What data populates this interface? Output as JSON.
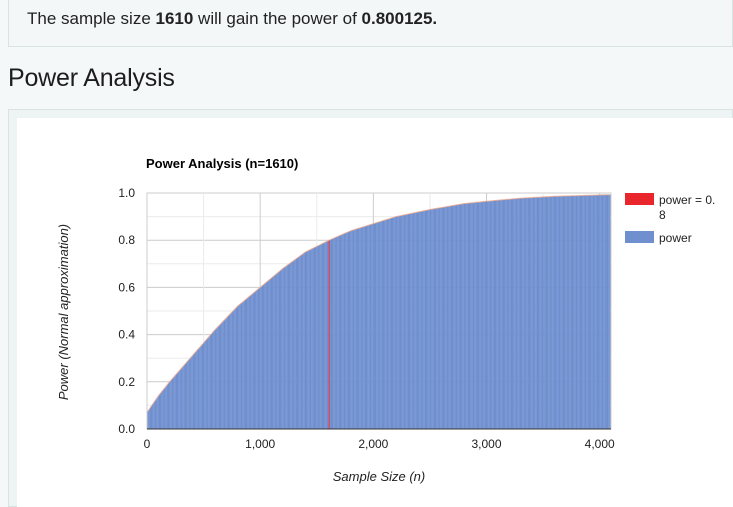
{
  "result": {
    "prefix": "The sample size ",
    "sample_size": "1610",
    "middle": " will gain the power of ",
    "power": "0.800125."
  },
  "section": {
    "title": "Power Analysis"
  },
  "chart_data": {
    "type": "bar",
    "title": "Power Analysis (n=1610)",
    "xlabel": "Sample Size (n)",
    "ylabel": "Power (Normal approximation)",
    "xlim": [
      0,
      4100
    ],
    "ylim": [
      0,
      1.0
    ],
    "x_ticks": [
      0,
      1000,
      2000,
      3000,
      4000
    ],
    "x_tick_labels": [
      "0",
      "1,000",
      "2,000",
      "3,000",
      "4,000"
    ],
    "y_ticks": [
      0,
      0.2,
      0.4,
      0.6,
      0.8,
      1.0
    ],
    "y_tick_labels": [
      "0.0",
      "0.2",
      "0.4",
      "0.6",
      "0.8",
      "1.0"
    ],
    "grid": true,
    "legend_position": "right",
    "series": [
      {
        "name": "power",
        "color": "#6f8fcf",
        "x_start": 10,
        "x_step": 10,
        "x_end": 4090,
        "curve_points": [
          {
            "x": 0,
            "y": 0.07
          },
          {
            "x": 100,
            "y": 0.14
          },
          {
            "x": 200,
            "y": 0.2
          },
          {
            "x": 400,
            "y": 0.31
          },
          {
            "x": 600,
            "y": 0.42
          },
          {
            "x": 800,
            "y": 0.52
          },
          {
            "x": 1000,
            "y": 0.6
          },
          {
            "x": 1200,
            "y": 0.68
          },
          {
            "x": 1400,
            "y": 0.75
          },
          {
            "x": 1610,
            "y": 0.8
          },
          {
            "x": 1800,
            "y": 0.84
          },
          {
            "x": 2000,
            "y": 0.87
          },
          {
            "x": 2200,
            "y": 0.9
          },
          {
            "x": 2500,
            "y": 0.93
          },
          {
            "x": 2800,
            "y": 0.955
          },
          {
            "x": 3000,
            "y": 0.965
          },
          {
            "x": 3300,
            "y": 0.978
          },
          {
            "x": 3600,
            "y": 0.986
          },
          {
            "x": 4090,
            "y": 0.993
          }
        ]
      },
      {
        "name": "power = 0.8",
        "legend_label_lines": [
          "power = 0.",
          "8"
        ],
        "color": "#e8262b",
        "x": 1610,
        "y": 0.800125
      }
    ],
    "colors": {
      "power": "#6f8fcf",
      "highlight": "#e8262b",
      "outline": "#f0a88a"
    }
  }
}
